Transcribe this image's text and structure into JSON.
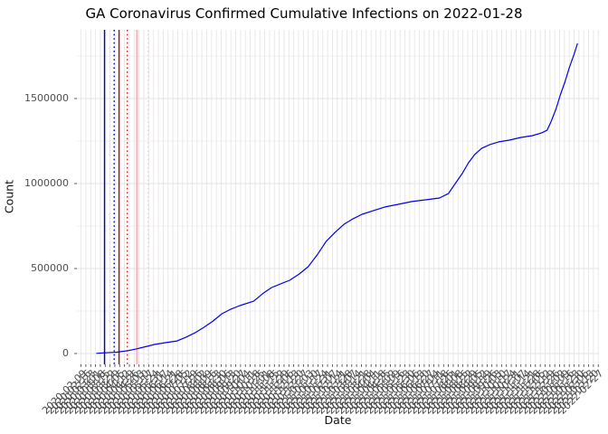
{
  "title": "GA Coronavirus Confirmed Cumulative Infections on 2022-01-28",
  "x_axis": {
    "label": "Date",
    "tick_labels": [
      "2020-02-09",
      "2020-02-16",
      "2020-02-23",
      "2020-03-01",
      "2020-03-08",
      "2020-03-15",
      "2020-03-22",
      "2020-03-29",
      "2020-04-05",
      "2020-04-12",
      "2020-04-19",
      "2020-04-26",
      "2020-05-03",
      "2020-05-10",
      "2020-05-17",
      "2020-05-24",
      "2020-05-31",
      "2020-06-07",
      "2020-06-14",
      "2020-06-21",
      "2020-06-28",
      "2020-07-05",
      "2020-07-12",
      "2020-07-19",
      "2020-07-26",
      "2020-08-02",
      "2020-08-09",
      "2020-08-16",
      "2020-08-23",
      "2020-08-30",
      "2020-09-06",
      "2020-09-13",
      "2020-09-20",
      "2020-09-27",
      "2020-10-04",
      "2020-10-11",
      "2020-10-18",
      "2020-10-25",
      "2020-11-01",
      "2020-11-08",
      "2020-11-15",
      "2020-11-22",
      "2020-11-29",
      "2020-12-06",
      "2020-12-13",
      "2020-12-20",
      "2020-12-27",
      "2021-01-03",
      "2021-01-10",
      "2021-01-17",
      "2021-01-24",
      "2021-01-31",
      "2021-02-07",
      "2021-02-14",
      "2021-02-21",
      "2021-02-28",
      "2021-03-07",
      "2021-03-14",
      "2021-03-21",
      "2021-03-28",
      "2021-04-04",
      "2021-04-11",
      "2021-04-18",
      "2021-04-25",
      "2021-05-02",
      "2021-05-09",
      "2021-05-16",
      "2021-05-23",
      "2021-05-30",
      "2021-06-06",
      "2021-06-13",
      "2021-06-20",
      "2021-06-27",
      "2021-07-04",
      "2021-07-11",
      "2021-07-18",
      "2021-07-25",
      "2021-08-01",
      "2021-08-08",
      "2021-08-15",
      "2021-08-22",
      "2021-08-29",
      "2021-09-05",
      "2021-09-12",
      "2021-09-19",
      "2021-09-26",
      "2021-10-03",
      "2021-10-10",
      "2021-10-17",
      "2021-10-24",
      "2021-10-31",
      "2021-11-07",
      "2021-11-14",
      "2021-11-21",
      "2021-11-28",
      "2021-12-05",
      "2021-12-12",
      "2021-12-19",
      "2021-12-26",
      "2022-01-02",
      "2022-01-09",
      "2022-01-16",
      "2022-01-23",
      "2022-01-30",
      "2022-02-06",
      "2022-02-13",
      "2022-02-20",
      "2022-02-27"
    ]
  },
  "y_axis": {
    "label": "Count",
    "tick_labels": [
      "0",
      "500000",
      "1000000",
      "1500000"
    ],
    "tick_values": [
      0,
      500000,
      1000000,
      1500000
    ]
  },
  "colors": {
    "line": "#0000EE",
    "grid_major": "#E3E3E3",
    "grid_minor": "#F0F0F0",
    "axis_text": "#4D4D4D",
    "tick_mark": "#333333",
    "panel_bg": "#FFFFFF"
  },
  "chart_data": {
    "type": "line",
    "title": "GA Coronavirus Confirmed Cumulative Infections on 2022-01-28",
    "xlabel": "Date",
    "ylabel": "Count",
    "x_range": [
      "2020-02-03",
      "2022-02-28"
    ],
    "ylim": [
      0,
      1904000
    ],
    "grid": true,
    "legend": "none",
    "series": [
      {
        "name": "cumulative-confirmed-infections",
        "color": "#0000EE",
        "points": [
          [
            "2020-03-02",
            1000
          ],
          [
            "2020-03-14",
            4000
          ],
          [
            "2020-04-01",
            8000
          ],
          [
            "2020-04-17",
            17000
          ],
          [
            "2020-04-29",
            27000
          ],
          [
            "2020-05-12",
            40000
          ],
          [
            "2020-05-25",
            53000
          ],
          [
            "2020-06-10",
            64000
          ],
          [
            "2020-06-27",
            74000
          ],
          [
            "2020-07-10",
            96000
          ],
          [
            "2020-07-23",
            122000
          ],
          [
            "2020-08-05",
            154000
          ],
          [
            "2020-08-18",
            191000
          ],
          [
            "2020-08-31",
            234000
          ],
          [
            "2020-09-13",
            261000
          ],
          [
            "2020-09-26",
            282000
          ],
          [
            "2020-10-16",
            308000
          ],
          [
            "2020-10-29",
            352000
          ],
          [
            "2020-11-11",
            388000
          ],
          [
            "2020-11-24",
            410000
          ],
          [
            "2020-12-07",
            431000
          ],
          [
            "2020-12-21",
            468000
          ],
          [
            "2021-01-03",
            511000
          ],
          [
            "2021-01-16",
            580000
          ],
          [
            "2021-01-29",
            660000
          ],
          [
            "2021-02-11",
            713000
          ],
          [
            "2021-02-24",
            761000
          ],
          [
            "2021-03-09",
            793000
          ],
          [
            "2021-03-22",
            819000
          ],
          [
            "2021-04-07",
            840000
          ],
          [
            "2021-04-24",
            862000
          ],
          [
            "2021-05-14",
            878000
          ],
          [
            "2021-06-02",
            894000
          ],
          [
            "2021-06-22",
            904000
          ],
          [
            "2021-07-12",
            915000
          ],
          [
            "2021-07-25",
            941000
          ],
          [
            "2021-08-04",
            1000000
          ],
          [
            "2021-08-14",
            1059000
          ],
          [
            "2021-08-23",
            1122000
          ],
          [
            "2021-09-01",
            1170000
          ],
          [
            "2021-09-11",
            1207000
          ],
          [
            "2021-09-23",
            1229000
          ],
          [
            "2021-10-06",
            1245000
          ],
          [
            "2021-10-21",
            1255000
          ],
          [
            "2021-11-07",
            1271000
          ],
          [
            "2021-11-24",
            1282000
          ],
          [
            "2021-12-07",
            1298000
          ],
          [
            "2021-12-15",
            1314000
          ],
          [
            "2021-12-21",
            1367000
          ],
          [
            "2021-12-28",
            1441000
          ],
          [
            "2022-01-03",
            1521000
          ],
          [
            "2022-01-10",
            1601000
          ],
          [
            "2022-01-16",
            1681000
          ],
          [
            "2022-01-23",
            1760000
          ],
          [
            "2022-01-28",
            1824000
          ]
        ]
      }
    ],
    "vlines": [
      {
        "date": "2020-03-14",
        "color": "#0000CD",
        "style": "solid",
        "width": 1.4
      },
      {
        "date": "2020-03-28",
        "color": "#0000CD",
        "style": "dotted",
        "width": 1.4
      },
      {
        "date": "2020-04-04",
        "color": "#C00000",
        "style": "solid",
        "width": 1.4
      },
      {
        "date": "2020-04-16",
        "color": "#E02020",
        "style": "dotted",
        "width": 1.4
      },
      {
        "date": "2020-04-30",
        "color": "#FFAEB9",
        "style": "solid",
        "width": 2
      },
      {
        "date": "2020-05-16",
        "color": "#FFC9D2",
        "style": "dotted",
        "width": 1.4
      }
    ]
  }
}
